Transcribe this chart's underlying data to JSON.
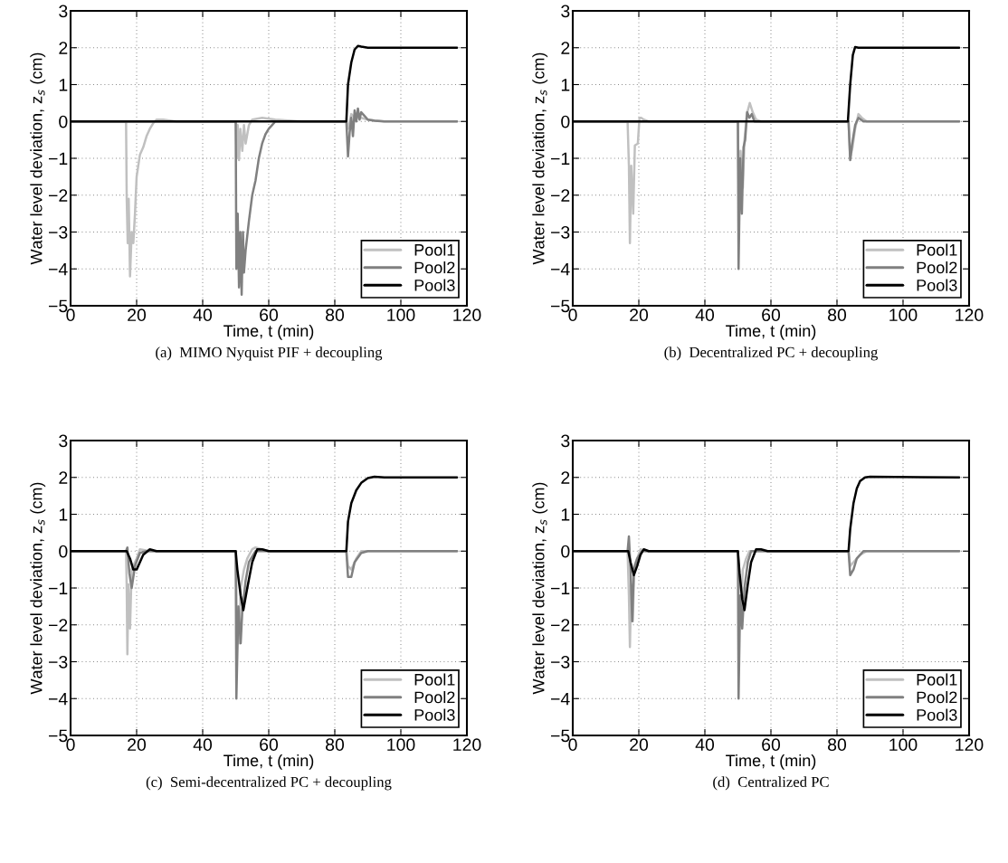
{
  "chart_data": [
    {
      "type": "line",
      "title": "(a)  MIMO Nyquist PIF + decoupling",
      "xlabel": "Time, t (min)",
      "ylabel": "Water level deviation, z$_{s}$ (cm)",
      "xlim": [
        0,
        120
      ],
      "ylim": [
        -5,
        3
      ],
      "xticks": [
        0,
        20,
        40,
        60,
        80,
        100,
        120
      ],
      "yticks": [
        -5,
        -4,
        -3,
        -2,
        -1,
        0,
        1,
        2,
        3
      ],
      "grid": true,
      "legend": "lower right",
      "line_style": "solid",
      "marker": "none",
      "series": [
        {
          "name": "Pool1",
          "color": "#c0c0c0",
          "x": [
            0,
            16.8,
            17,
            17.3,
            17.6,
            18,
            18.5,
            19,
            19.5,
            20,
            21,
            22,
            23,
            24,
            25,
            26,
            28,
            32,
            50,
            50.3,
            50.6,
            51,
            51.4,
            52,
            52.5,
            53,
            54,
            55,
            58,
            62,
            70,
            83.5,
            84,
            85,
            86,
            88,
            90,
            95,
            117
          ],
          "values": [
            0,
            0,
            -2.1,
            -3.3,
            -2.1,
            -4.2,
            -3.0,
            -3.3,
            -2.5,
            -1.5,
            -0.9,
            -0.7,
            -0.4,
            -0.2,
            -0.05,
            0.05,
            0.05,
            0,
            0,
            -1,
            -0.1,
            -1.05,
            -0.2,
            -0.8,
            -0.1,
            -0.6,
            -0.1,
            0.05,
            0.1,
            0.05,
            0,
            0,
            -0.2,
            0.2,
            0.1,
            0.1,
            0.05,
            0,
            0
          ]
        },
        {
          "name": "Pool2",
          "color": "#808080",
          "x": [
            0,
            50,
            50.2,
            50.6,
            51,
            51.4,
            51.8,
            52.2,
            52.5,
            53,
            54,
            55,
            56,
            57,
            58,
            59,
            60,
            61,
            62,
            83.5,
            84,
            84.5,
            85,
            85.5,
            86,
            86.5,
            87,
            87.5,
            88,
            89,
            90,
            92,
            95,
            117
          ],
          "values": [
            0,
            0,
            -4.0,
            -2.5,
            -4.5,
            -3.0,
            -4.7,
            -3.0,
            -4.1,
            -3.5,
            -2.7,
            -2.0,
            -1.6,
            -1.0,
            -0.6,
            -0.35,
            -0.2,
            -0.1,
            0,
            0,
            -0.95,
            -0.3,
            0.1,
            -0.4,
            0.3,
            0,
            0.35,
            0.05,
            0.25,
            0.15,
            0.05,
            0.02,
            0,
            0
          ]
        },
        {
          "name": "Pool3",
          "color": "#000000",
          "x": [
            0,
            83.5,
            84,
            85,
            86,
            87,
            88,
            90,
            117
          ],
          "values": [
            0,
            0,
            1.0,
            1.6,
            1.95,
            2.05,
            2.03,
            2.0,
            2.0
          ]
        }
      ]
    },
    {
      "type": "line",
      "title": "(b)  Decentralized PC + decoupling",
      "xlabel": "Time, t (min)",
      "ylabel": "Water level deviation, z$_{s}$ (cm)",
      "xlim": [
        0,
        120
      ],
      "ylim": [
        -5,
        3
      ],
      "xticks": [
        0,
        20,
        40,
        60,
        80,
        100,
        120
      ],
      "yticks": [
        -5,
        -4,
        -3,
        -2,
        -1,
        0,
        1,
        2,
        3
      ],
      "grid": true,
      "legend": "lower right",
      "line_style": "solid",
      "marker": "none",
      "series": [
        {
          "name": "Pool1",
          "color": "#c0c0c0",
          "x": [
            0,
            16.6,
            17,
            17.3,
            17.7,
            18.3,
            18.8,
            19.7,
            20.2,
            20.7,
            21.5,
            23,
            50,
            50.3,
            50.8,
            51.5,
            52,
            52.7,
            53.6,
            54.5,
            55.5,
            57,
            83.5,
            84,
            84.7,
            85.5,
            86.5,
            87.5,
            89,
            117
          ],
          "values": [
            0,
            0,
            -1.2,
            -3.3,
            -1.2,
            -2.5,
            -0.65,
            -0.6,
            0.1,
            0.1,
            0.05,
            0,
            0,
            -2.4,
            -0.8,
            -1.8,
            -0.5,
            0.2,
            0.5,
            0.25,
            0.05,
            0,
            0,
            -1.0,
            -0.7,
            -0.2,
            0.2,
            0.1,
            0,
            0
          ]
        },
        {
          "name": "Pool2",
          "color": "#808080",
          "x": [
            0,
            50,
            50.2,
            50.7,
            51.2,
            51.7,
            52.2,
            52.8,
            53.5,
            54.2,
            55,
            83.5,
            84,
            84.6,
            85.5,
            86.5,
            88,
            117
          ],
          "values": [
            0,
            0,
            -4.0,
            -1.0,
            -2.5,
            -0.7,
            -0.5,
            0.25,
            0.1,
            0.2,
            0,
            0,
            -1.05,
            -0.6,
            -0.1,
            0.1,
            0,
            0
          ]
        },
        {
          "name": "Pool3",
          "color": "#000000",
          "x": [
            0,
            83.3,
            84,
            84.8,
            85.5,
            86.5,
            117
          ],
          "values": [
            0,
            0,
            1.0,
            1.8,
            2.02,
            2.0,
            2.0
          ]
        }
      ]
    },
    {
      "type": "line",
      "title": "(c)  Semi-decentralized PC + decoupling",
      "xlabel": "Time, t (min)",
      "ylabel": "Water level deviation, z$_{s}$ (cm)",
      "xlim": [
        0,
        120
      ],
      "ylim": [
        -5,
        3
      ],
      "xticks": [
        0,
        20,
        40,
        60,
        80,
        100,
        120
      ],
      "yticks": [
        -5,
        -4,
        -3,
        -2,
        -1,
        0,
        1,
        2,
        3
      ],
      "grid": true,
      "legend": "lower right",
      "line_style": "solid",
      "marker": "none",
      "series": [
        {
          "name": "Pool1",
          "color": "#c0c0c0",
          "x": [
            0,
            16.8,
            17,
            17.2,
            17.5,
            18,
            18.5,
            19,
            20,
            21,
            24,
            50,
            50.3,
            51,
            51.5,
            52.5,
            53.5,
            55,
            56,
            58,
            60,
            83.5,
            84,
            85,
            86.5,
            88,
            117
          ],
          "values": [
            0,
            0,
            -1.0,
            -2.8,
            -0.9,
            -2.1,
            -0.5,
            -0.4,
            -0.2,
            0.05,
            0,
            0,
            -1.5,
            -2.5,
            -1.0,
            -0.5,
            -0.2,
            0.05,
            0.1,
            0.05,
            0,
            0,
            -0.4,
            -0.5,
            -0.2,
            0,
            0
          ]
        },
        {
          "name": "Pool2",
          "color": "#808080",
          "x": [
            0,
            16.8,
            17.2,
            17.8,
            18.5,
            19.5,
            21,
            23,
            50,
            50.2,
            50.8,
            51.5,
            52,
            53,
            54,
            56,
            83.5,
            84,
            85,
            86,
            88,
            90,
            117
          ],
          "values": [
            0,
            0,
            0.1,
            -0.6,
            -1.0,
            -0.4,
            -0.05,
            0,
            0,
            -4.0,
            -1.5,
            -2.5,
            -1.6,
            -0.8,
            -0.3,
            0,
            0,
            -0.7,
            -0.7,
            -0.3,
            -0.05,
            0,
            0
          ]
        },
        {
          "name": "Pool3",
          "color": "#000000",
          "x": [
            0,
            17,
            18,
            19,
            20,
            21,
            22,
            24,
            26,
            50,
            50.5,
            51.5,
            52.3,
            53.5,
            55,
            56.5,
            58,
            60,
            83.5,
            84,
            85,
            86.5,
            88,
            90,
            92,
            95,
            117
          ],
          "values": [
            0,
            0,
            -0.2,
            -0.5,
            -0.5,
            -0.3,
            -0.1,
            0.05,
            0,
            0,
            -0.5,
            -1.2,
            -1.6,
            -1.0,
            -0.3,
            0.05,
            0.05,
            0,
            0,
            0.8,
            1.3,
            1.65,
            1.85,
            1.98,
            2.02,
            2,
            2
          ]
        }
      ]
    },
    {
      "type": "line",
      "title": "(d)  Centralized PC",
      "xlabel": "Time, t (min)",
      "ylabel": "Water level deviation, z$_{s}$ (cm)",
      "xlim": [
        0,
        120
      ],
      "ylim": [
        -5,
        3
      ],
      "xticks": [
        0,
        20,
        40,
        60,
        80,
        100,
        120
      ],
      "yticks": [
        -5,
        -4,
        -3,
        -2,
        -1,
        0,
        1,
        2,
        3
      ],
      "grid": true,
      "legend": "lower right",
      "line_style": "solid",
      "marker": "none",
      "series": [
        {
          "name": "Pool1",
          "color": "#c0c0c0",
          "x": [
            0,
            16.6,
            17,
            17.3,
            17.7,
            18.2,
            18.6,
            19.5,
            20.5,
            22,
            50,
            50.3,
            51,
            51.5,
            52.5,
            53.5,
            55,
            83.5,
            84,
            85,
            87,
            89,
            117
          ],
          "values": [
            0,
            0,
            -1.2,
            -2.6,
            -0.9,
            -1.9,
            -0.4,
            -0.2,
            0.05,
            0,
            0,
            -0.5,
            -1.3,
            -0.5,
            -0.2,
            0,
            0,
            0,
            -0.4,
            -0.3,
            -0.1,
            0,
            0
          ]
        },
        {
          "name": "Pool2",
          "color": "#808080",
          "x": [
            0,
            16.6,
            17,
            17.5,
            18,
            18.5,
            19.5,
            21,
            50,
            50.2,
            50.7,
            51.3,
            52,
            53,
            54,
            83.5,
            84,
            85,
            86,
            88,
            117
          ],
          "values": [
            0,
            0,
            0.4,
            -0.5,
            -1.9,
            -0.5,
            -0.2,
            0,
            0,
            -4.0,
            -1.2,
            -2.1,
            -1.0,
            -0.3,
            0,
            0,
            -0.65,
            -0.5,
            -0.2,
            0,
            0
          ]
        },
        {
          "name": "Pool3",
          "color": "#000000",
          "x": [
            0,
            16.8,
            17.5,
            18.5,
            19.5,
            20.5,
            21.5,
            23,
            50,
            50.5,
            51.3,
            52,
            53,
            54,
            55.5,
            57,
            59,
            83.5,
            84,
            85,
            86,
            87,
            88.5,
            90,
            117
          ],
          "values": [
            0,
            0,
            -0.3,
            -0.65,
            -0.4,
            -0.1,
            0.05,
            0,
            0,
            -0.6,
            -1.3,
            -1.6,
            -0.9,
            -0.3,
            0.05,
            0.05,
            0,
            0,
            0.6,
            1.3,
            1.7,
            1.9,
            2.0,
            2.02,
            2
          ]
        }
      ]
    }
  ]
}
